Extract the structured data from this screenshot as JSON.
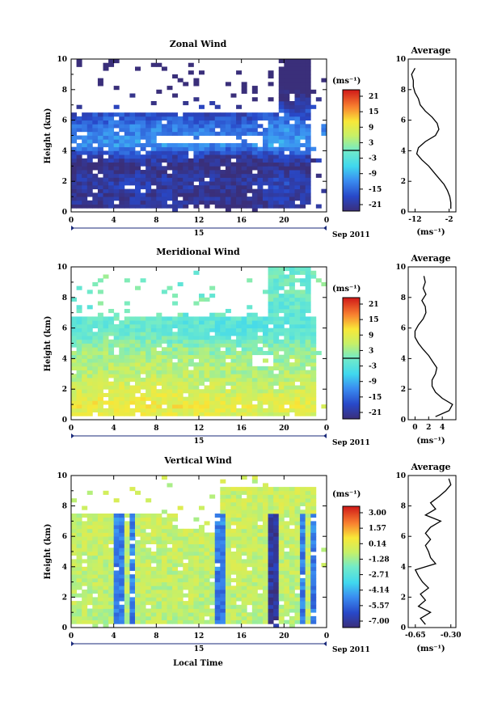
{
  "chart_data": [
    {
      "type": "heatmap",
      "title": "Zonal Wind",
      "ylabel": "Height (km)",
      "ylim": [
        0,
        10
      ],
      "yticks": [
        "0",
        "2",
        "4",
        "6",
        "8",
        "10"
      ],
      "xlim": [
        0,
        24
      ],
      "xticks": [
        "0",
        "4",
        "8",
        "12",
        "16",
        "20",
        "0"
      ],
      "date_label": "15",
      "month_label": "Sep 2011",
      "colorbar": {
        "unit": "(ms⁻¹)",
        "ticks": [
          "21",
          "15",
          "9",
          "3",
          "-3",
          "-9",
          "-15",
          "-21"
        ],
        "min": -24,
        "max": 24,
        "zero_contour": true
      },
      "average_profile": {
        "title": "Average",
        "xlabel": "(ms⁻¹)",
        "xticks": [
          "-12",
          "-2"
        ],
        "xlim": [
          -14,
          0
        ],
        "heights": [
          0.2,
          0.6,
          1.0,
          1.4,
          1.8,
          2.2,
          2.6,
          3.0,
          3.4,
          3.8,
          4.2,
          4.6,
          5.0,
          5.4,
          5.8,
          6.2,
          6.6,
          7.0,
          7.4,
          7.8,
          8.2,
          8.6,
          9.0,
          9.4
        ],
        "values": [
          -1.5,
          -1.5,
          -1.8,
          -2.5,
          -3.5,
          -5,
          -6.5,
          -8,
          -10,
          -11.5,
          -11,
          -9,
          -6,
          -5,
          -5.5,
          -7,
          -9,
          -10.5,
          -11,
          -12,
          -12.5,
          -12.5,
          -13,
          -12
        ]
      },
      "fields": {
        "base": -10,
        "profile": [
          [
            0,
            -14
          ],
          [
            1,
            -12
          ],
          [
            2,
            -11
          ],
          [
            3,
            -14
          ],
          [
            3.7,
            -10
          ],
          [
            4.3,
            -2
          ],
          [
            5.5,
            -4
          ],
          [
            6.5,
            -9
          ],
          [
            8,
            -18
          ],
          [
            10,
            -20
          ]
        ],
        "time_mod": [
          [
            0,
            0
          ],
          [
            6,
            1
          ],
          [
            12,
            0
          ],
          [
            16,
            -1
          ],
          [
            20,
            2
          ],
          [
            24,
            0
          ]
        ]
      }
    },
    {
      "type": "heatmap",
      "title": "Meridional Wind",
      "ylabel": "Height (km)",
      "ylim": [
        0,
        10
      ],
      "yticks": [
        "0",
        "2",
        "4",
        "6",
        "8",
        "10"
      ],
      "xlim": [
        0,
        24
      ],
      "xticks": [
        "0",
        "4",
        "8",
        "12",
        "16",
        "20",
        "0"
      ],
      "date_label": "15",
      "month_label": "Sep 2011",
      "colorbar": {
        "unit": "(ms⁻¹)",
        "ticks": [
          "21",
          "15",
          "9",
          "3",
          "-3",
          "-9",
          "-15",
          "-21"
        ],
        "min": -24,
        "max": 24,
        "zero_contour": true
      },
      "average_profile": {
        "title": "Average",
        "xlabel": "(ms⁻¹)",
        "xticks": [
          "0",
          "2",
          "4"
        ],
        "xlim": [
          -1,
          6
        ],
        "heights": [
          0.2,
          0.6,
          1.0,
          1.4,
          1.8,
          2.2,
          2.6,
          3.0,
          3.4,
          3.8,
          4.2,
          4.6,
          5.0,
          5.4,
          5.8,
          6.2,
          6.6,
          7.0,
          7.4,
          7.8,
          8.2,
          8.6,
          9.0,
          9.4
        ],
        "values": [
          3,
          5,
          5.5,
          4,
          3,
          2.5,
          2.5,
          3,
          3.2,
          2.6,
          2,
          1.2,
          0.5,
          0,
          0,
          0.5,
          1.2,
          1.6,
          1.5,
          1.0,
          1.6,
          1.2,
          1.5,
          1.3
        ]
      },
      "fields": {
        "base": 2,
        "profile": [
          [
            0,
            6
          ],
          [
            1,
            8
          ],
          [
            2,
            5
          ],
          [
            3,
            3
          ],
          [
            4,
            2
          ],
          [
            5,
            -1
          ],
          [
            6,
            -5
          ],
          [
            7,
            -3
          ],
          [
            8,
            -2
          ],
          [
            10,
            -2
          ]
        ],
        "time_mod": [
          [
            0,
            0
          ],
          [
            6,
            1
          ],
          [
            12,
            0
          ],
          [
            18,
            -1
          ],
          [
            24,
            0
          ]
        ]
      }
    },
    {
      "type": "heatmap",
      "title": "Vertical Wind",
      "ylabel": "Height (km)",
      "xlabel": "Local Time",
      "ylim": [
        0,
        10
      ],
      "yticks": [
        "0",
        "2",
        "4",
        "6",
        "8",
        "10"
      ],
      "xlim": [
        0,
        24
      ],
      "xticks": [
        "0",
        "4",
        "8",
        "12",
        "16",
        "20",
        "0"
      ],
      "date_label": "15",
      "month_label": "Sep 2011",
      "colorbar": {
        "unit": "(ms⁻¹)",
        "ticks": [
          "3.00",
          "1.57",
          "0.14",
          "-1.28",
          "-2.71",
          "-4.14",
          "-5.57",
          "-7.00"
        ],
        "min": -7.7,
        "max": 3.7,
        "zero_contour": false
      },
      "average_profile": {
        "title": "Average",
        "xlabel": "(ms⁻¹)",
        "xticks": [
          "-0.65",
          "-0.30"
        ],
        "xlim": [
          -0.72,
          -0.25
        ],
        "heights": [
          0.2,
          0.6,
          1.0,
          1.4,
          1.8,
          2.2,
          2.6,
          3.0,
          3.4,
          3.8,
          4.2,
          4.6,
          5.0,
          5.4,
          5.8,
          6.2,
          6.6,
          7.0,
          7.4,
          7.8,
          8.2,
          8.6,
          9.0,
          9.4,
          9.8
        ],
        "values": [
          -0.55,
          -0.6,
          -0.5,
          -0.62,
          -0.55,
          -0.6,
          -0.52,
          -0.58,
          -0.62,
          -0.65,
          -0.45,
          -0.5,
          -0.52,
          -0.55,
          -0.5,
          -0.55,
          -0.5,
          -0.4,
          -0.55,
          -0.45,
          -0.5,
          -0.42,
          -0.35,
          -0.3,
          -0.32
        ]
      },
      "fields": {
        "base": -0.3,
        "profile": [
          [
            0,
            -0.5
          ],
          [
            10,
            -0.1
          ]
        ],
        "time_mod": [
          [
            0,
            0
          ],
          [
            24,
            0
          ]
        ]
      }
    }
  ]
}
